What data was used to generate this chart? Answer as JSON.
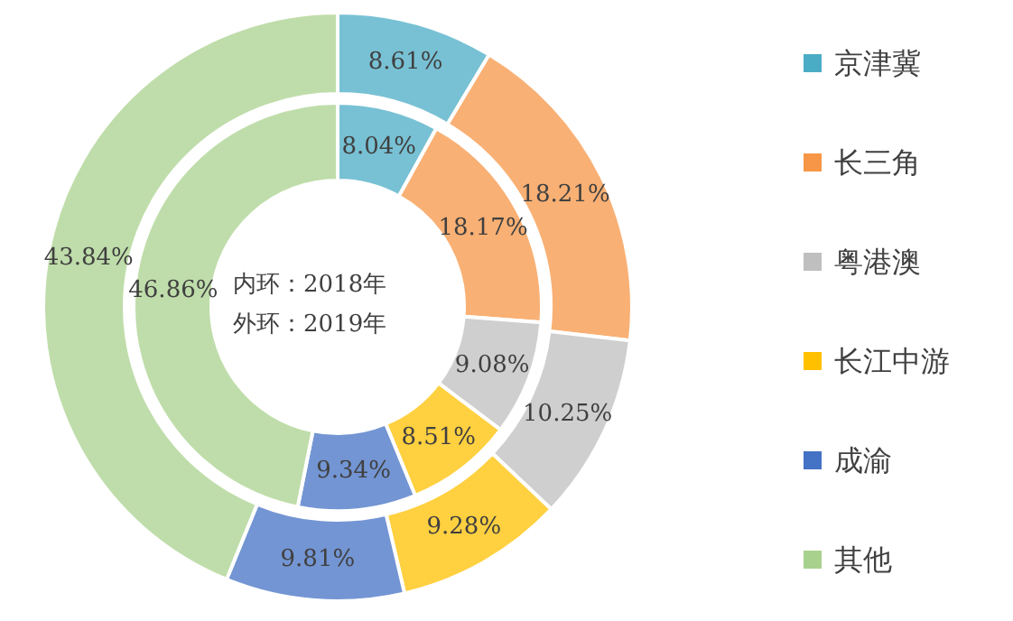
{
  "chart_data": {
    "type": "donut",
    "categories": [
      "京津冀",
      "长三角",
      "粤港澳",
      "长江中游",
      "成渝",
      "其他"
    ],
    "colors": [
      "#4bacc6",
      "#f79646",
      "#bfbfbf",
      "#ffc000",
      "#4472c4",
      "#a9d18e"
    ],
    "series": [
      {
        "values": [
          8.04,
          18.17,
          9.08,
          8.51,
          9.34,
          46.86
        ],
        "value_labels": [
          "8.04%",
          "18.17%",
          "9.08%",
          "8.51%",
          "9.34%",
          "46.86%"
        ]
      },
      {
        "values": [
          8.61,
          18.21,
          10.25,
          9.28,
          9.81,
          43.84
        ],
        "value_labels": [
          "8.61%",
          "18.21%",
          "10.25%",
          "9.28%",
          "9.81%",
          "43.84%"
        ]
      }
    ],
    "legend": "right",
    "annotations": [
      "内环：2018年",
      "外环：2019年"
    ]
  }
}
